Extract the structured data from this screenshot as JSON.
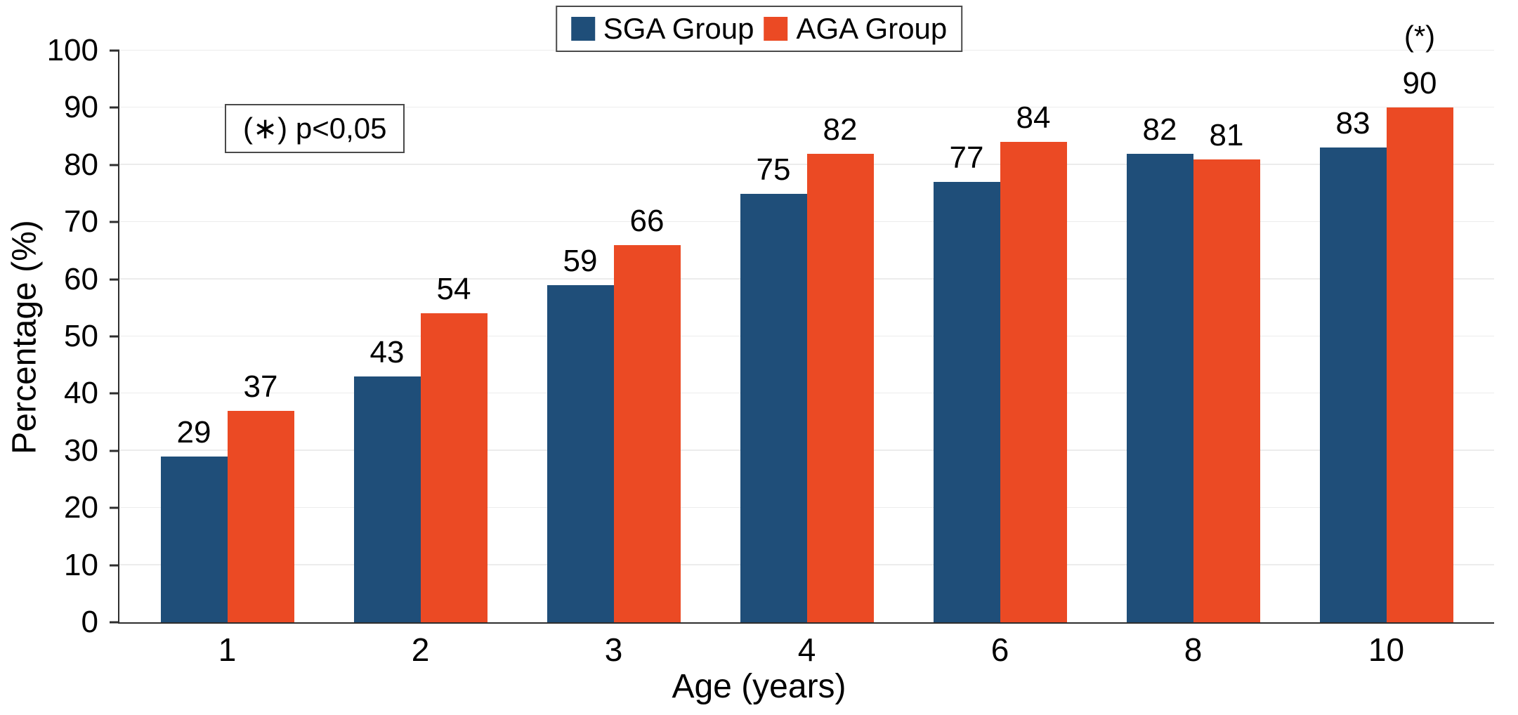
{
  "chart_data": {
    "type": "bar",
    "title": "",
    "xlabel": "Age (years)",
    "ylabel": "Percentage (%)",
    "categories": [
      "1",
      "2",
      "3",
      "4",
      "6",
      "8",
      "10"
    ],
    "series": [
      {
        "name": "SGA Group",
        "color": "#1F4E79",
        "values": [
          29,
          43,
          59,
          75,
          77,
          82,
          83
        ]
      },
      {
        "name": "AGA Group",
        "color": "#EB4A24",
        "values": [
          37,
          54,
          66,
          82,
          84,
          81,
          90
        ]
      }
    ],
    "ylim": [
      0,
      100
    ],
    "yticks": [
      0,
      10,
      20,
      30,
      40,
      50,
      60,
      70,
      80,
      90,
      100
    ],
    "grid": "horizontal",
    "legend_position": "top-center",
    "annotations": {
      "note_box": "(∗) p<0,05",
      "point_marker": {
        "text": "(*)",
        "category_index": 6,
        "series_index": 1
      }
    }
  }
}
